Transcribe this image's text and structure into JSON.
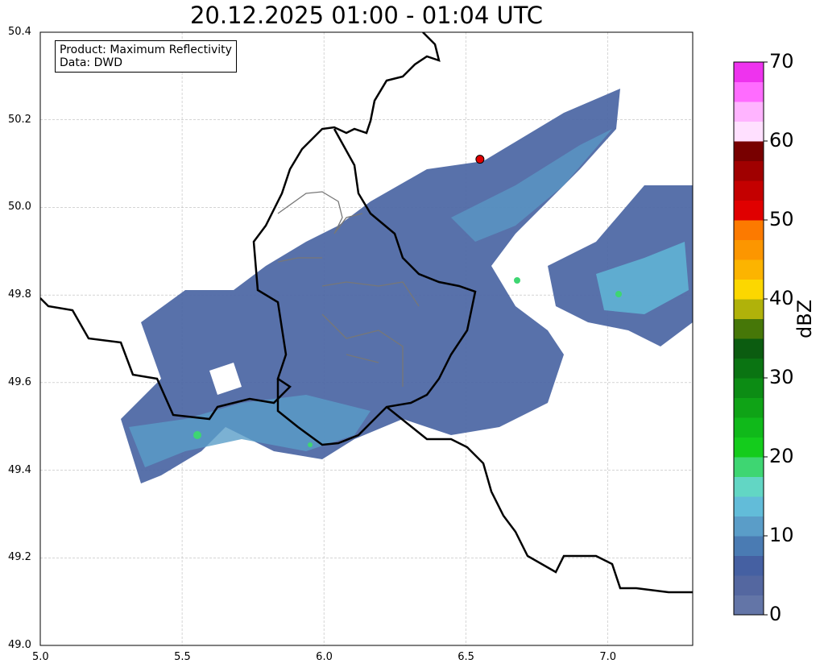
{
  "title": "20.12.2025 01:00 - 01:04 UTC",
  "legend": {
    "product": "Product: Maximum Reflectivity",
    "data": "Data: DWD"
  },
  "axes": {
    "x_ticks": [
      "5.0",
      "5.5",
      "6.0",
      "6.5",
      "7.0"
    ],
    "y_ticks": [
      "50.4",
      "50.2",
      "50.0",
      "49.8",
      "49.6",
      "49.4",
      "49.2",
      "49.0"
    ],
    "xlim": [
      5.0,
      7.3
    ],
    "ylim": [
      49.0,
      50.4
    ]
  },
  "colorbar": {
    "label": "dBZ",
    "ticks": [
      "0",
      "10",
      "20",
      "30",
      "40",
      "50",
      "60",
      "70"
    ],
    "range": [
      0,
      70
    ],
    "step": 2.5,
    "colors": [
      "#6375a7",
      "#5467a0",
      "#4560a2",
      "#4a7bb3",
      "#5a9dc8",
      "#62bcd9",
      "#62d6c4",
      "#3ed672",
      "#14cc1c",
      "#10b91a",
      "#0fa316",
      "#0c8c14",
      "#0a7412",
      "#0b5c10",
      "#467708",
      "#b0b20a",
      "#fcd700",
      "#fcb400",
      "#fc9600",
      "#fc7a00",
      "#e00000",
      "#c40000",
      "#a00000",
      "#780000",
      "#ffe0ff",
      "#ffb4ff",
      "#ff6cff",
      "#ee33ee"
    ]
  },
  "marker": {
    "lon": 6.55,
    "lat": 50.11,
    "color": "#e00000"
  }
}
